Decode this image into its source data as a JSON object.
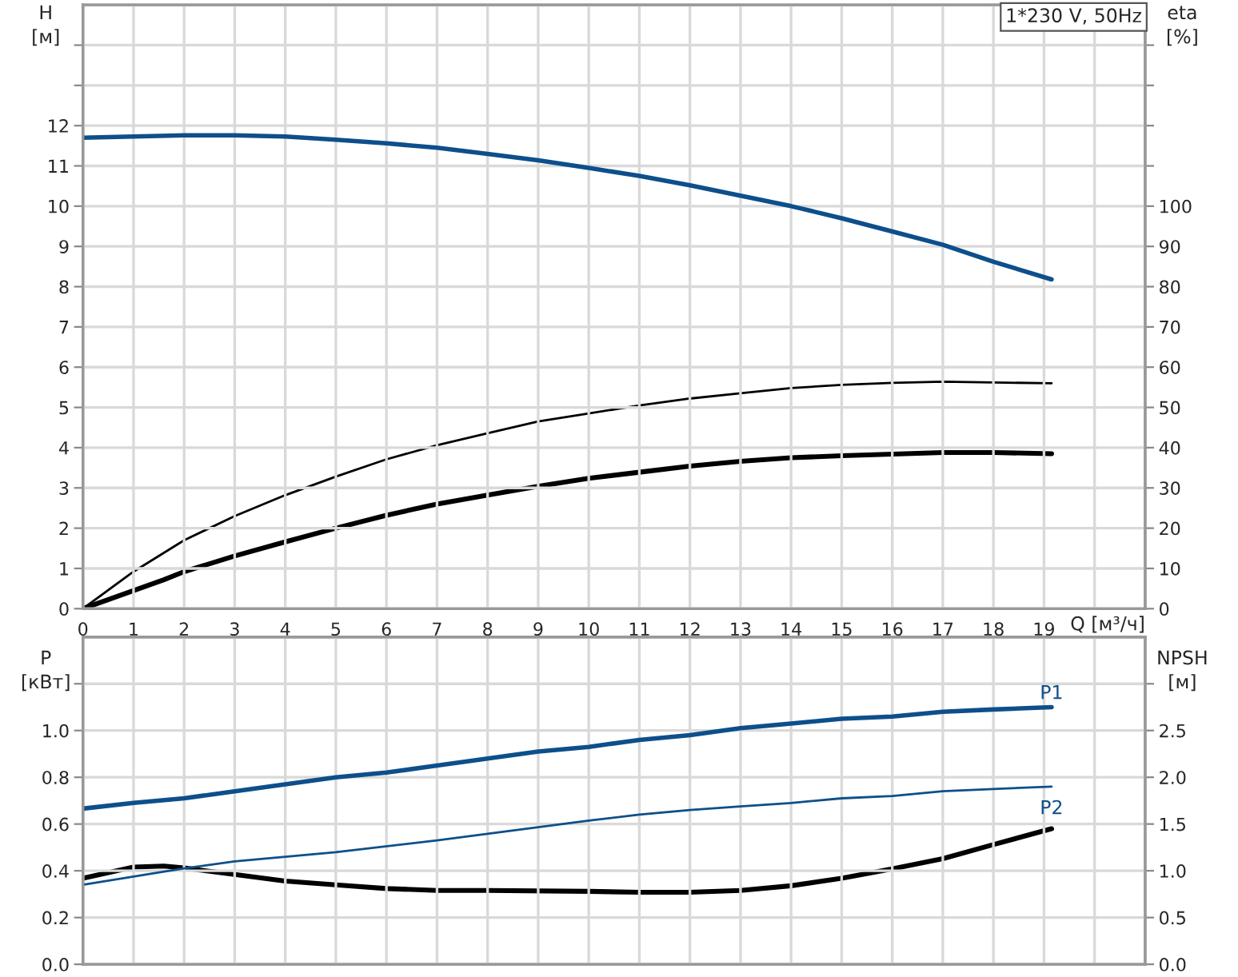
{
  "chart_data": [
    {
      "type": "line",
      "ylabel": "H\n[м]",
      "y2label": "eta\n[%]",
      "xlabel": "Q [м³/ч]",
      "annotations": [
        "1*230 V, 50Hz"
      ],
      "xlim": [
        0,
        21
      ],
      "xticks": [
        0,
        1,
        2,
        3,
        4,
        5,
        6,
        7,
        8,
        9,
        10,
        11,
        12,
        13,
        14,
        15,
        16,
        17,
        18,
        19,
        {
          "value": 20,
          "label": null
        }
      ],
      "ylim": [
        0,
        15
      ],
      "yticks": [
        0,
        1,
        2,
        3,
        4,
        5,
        6,
        7,
        8,
        9,
        10,
        11,
        12,
        {
          "value": 13,
          "label": null
        },
        {
          "value": 14,
          "label": null
        }
      ],
      "y2lim": [
        0,
        150
      ],
      "y2ticks": [
        0,
        10,
        20,
        30,
        40,
        50,
        60,
        70,
        80,
        90,
        100,
        {
          "value": 110,
          "label": null
        },
        {
          "value": 120,
          "label": null
        },
        {
          "value": 130,
          "label": null
        },
        {
          "value": 140,
          "label": null
        }
      ],
      "grid": true,
      "legend": false,
      "tick_labels": true,
      "series": [
        {
          "color": "#0d4f8b",
          "x": [
            0,
            1,
            2,
            3,
            4,
            5,
            6,
            7,
            8,
            9,
            10,
            11,
            12,
            13,
            14,
            15,
            16,
            17,
            18,
            19.15
          ],
          "values": [
            11.7,
            11.73,
            11.76,
            11.76,
            11.73,
            11.65,
            11.56,
            11.45,
            11.3,
            11.14,
            10.95,
            10.75,
            10.52,
            10.26,
            10.0,
            9.7,
            9.37,
            9.04,
            8.62,
            8.18
          ]
        },
        {
          "color": "#000000",
          "axis": "y2",
          "x": [
            0,
            1,
            2,
            3,
            4,
            5,
            6,
            7,
            8,
            9,
            10,
            11,
            12,
            13,
            14,
            15,
            16,
            17,
            18,
            19.15
          ],
          "values": [
            0,
            9.2,
            17,
            23,
            28.2,
            32.8,
            37.1,
            40.6,
            43.6,
            46.5,
            48.5,
            50.5,
            52.2,
            53.5,
            54.8,
            55.6,
            56.1,
            56.4,
            56.2,
            56
          ]
        },
        {
          "color": "#000000",
          "axis": "y2",
          "x": [
            0,
            1.6,
            2,
            3,
            4,
            5,
            6,
            7,
            8,
            9,
            10,
            11,
            12,
            13,
            14,
            15,
            16,
            17,
            18,
            19.15
          ],
          "values": [
            0,
            7.2,
            9.2,
            13.1,
            16.6,
            20,
            23.2,
            26,
            28.2,
            30.4,
            32.4,
            33.9,
            35.4,
            36.6,
            37.5,
            38,
            38.4,
            38.8,
            38.8,
            38.5
          ]
        }
      ]
    },
    {
      "type": "line",
      "ylabel": "P\n[кВт]",
      "y2label": "NPSH\n[м]",
      "xlim": [
        0,
        21
      ],
      "xticks": [
        0,
        1,
        2,
        3,
        4,
        5,
        6,
        7,
        8,
        9,
        10,
        11,
        12,
        13,
        14,
        15,
        16,
        17,
        18,
        19,
        20
      ],
      "ylim": [
        0,
        1.4
      ],
      "yticks": [
        {
          "value": 0,
          "label": "0.0"
        },
        0.2,
        0.4,
        0.6,
        0.8,
        {
          "value": 1,
          "label": "1.0"
        },
        {
          "value": 1.2,
          "label": null
        }
      ],
      "y2lim": [
        0,
        3.5
      ],
      "y2ticks": [
        {
          "value": 0,
          "label": "0.0"
        },
        0.5,
        {
          "value": 1,
          "label": "1.0"
        },
        1.5,
        {
          "value": 2,
          "label": "2.0"
        },
        2.5,
        {
          "value": 3,
          "label": null
        }
      ],
      "grid": true,
      "legend": false,
      "tick_labels": "y",
      "series": [
        {
          "name": "P1",
          "color": "#0d4f8b",
          "x": [
            0,
            1,
            2,
            3,
            4,
            5,
            6,
            7,
            8,
            9,
            10,
            11,
            12,
            13,
            14,
            15,
            16,
            17,
            18,
            19.15
          ],
          "values": [
            0.666,
            0.69,
            0.71,
            0.74,
            0.77,
            0.8,
            0.82,
            0.85,
            0.88,
            0.91,
            0.93,
            0.96,
            0.98,
            1.01,
            1.03,
            1.05,
            1.06,
            1.08,
            1.09,
            1.1
          ]
        },
        {
          "name": "P2",
          "color": "#0d4f8b",
          "x": [
            0,
            2,
            3,
            5,
            7,
            10,
            11,
            12,
            13,
            14,
            15,
            16,
            17,
            18,
            19.15
          ],
          "values": [
            0.34,
            0.41,
            0.44,
            0.48,
            0.53,
            0.615,
            0.64,
            0.66,
            0.675,
            0.69,
            0.71,
            0.72,
            0.74,
            0.75,
            0.76
          ]
        },
        {
          "color": "#000000",
          "axis": "y2",
          "x": [
            0,
            1,
            1.6,
            2,
            3,
            4,
            5,
            6,
            7,
            8,
            10,
            11,
            12,
            13,
            14,
            15,
            16,
            17,
            18,
            19.15
          ],
          "values": [
            0.92,
            1.04,
            1.05,
            1.03,
            0.96,
            0.89,
            0.85,
            0.81,
            0.79,
            0.79,
            0.78,
            0.77,
            0.77,
            0.79,
            0.84,
            0.92,
            1.02,
            1.13,
            1.28,
            1.45
          ]
        }
      ]
    }
  ]
}
